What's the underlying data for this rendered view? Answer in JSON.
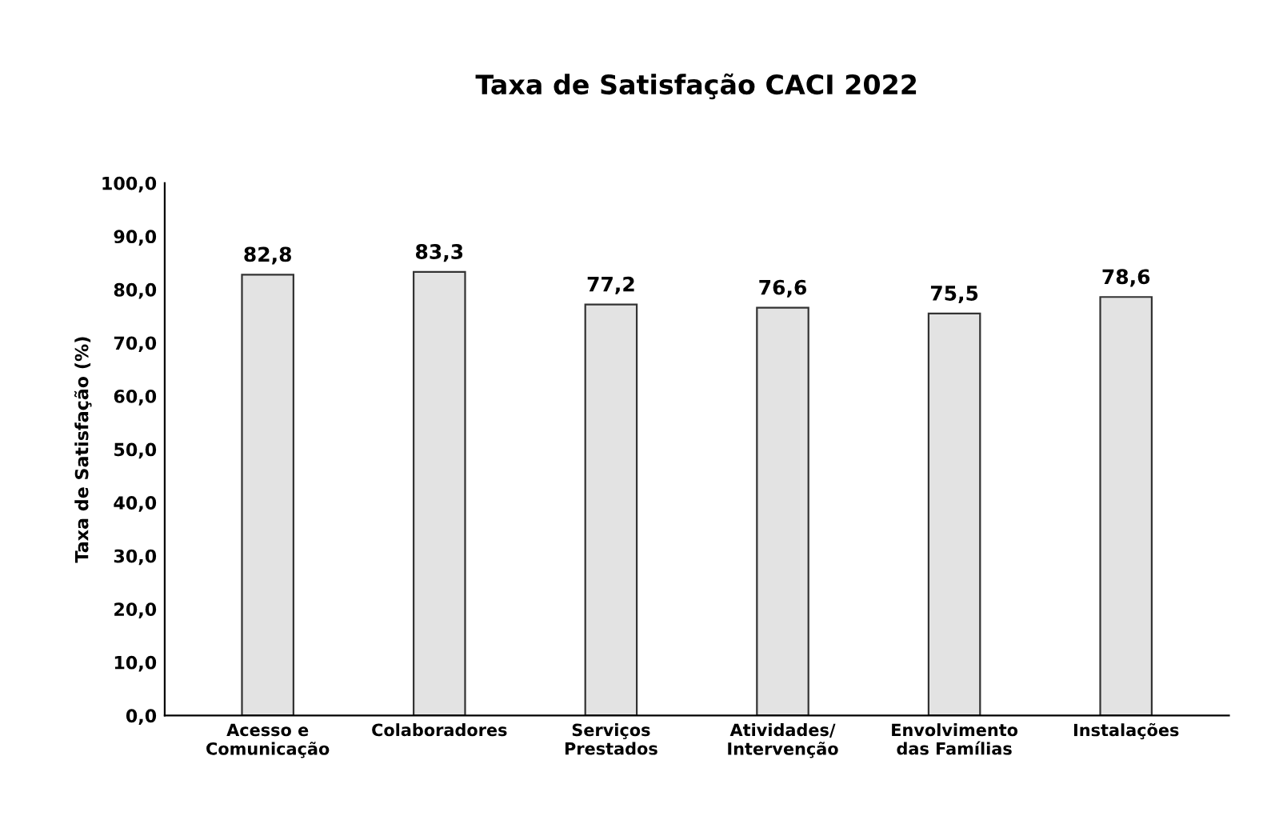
{
  "chart_data": {
    "type": "bar",
    "title": "Taxa de Satisfação CACI 2022",
    "ylabel": "Taxa de Satisfação (%)",
    "categories": [
      "Acesso e\nComunicação",
      "Colaboradores",
      "Serviços\nPrestados",
      "Atividades/\nIntervenção",
      "Envolvimento\ndas Famílias",
      "Instalações"
    ],
    "values": [
      82.8,
      83.3,
      77.2,
      76.6,
      75.5,
      78.6
    ],
    "value_labels": [
      "82,8",
      "83,3",
      "77,2",
      "76,6",
      "75,5",
      "78,6"
    ],
    "color": "#e3e3e3",
    "ylim": [
      0,
      100
    ],
    "yticks": [
      {
        "value": 0,
        "label": "0,0"
      },
      {
        "value": 10,
        "label": "10,0"
      },
      {
        "value": 20,
        "label": "20,0"
      },
      {
        "value": 30,
        "label": "30,0"
      },
      {
        "value": 40,
        "label": "40,0"
      },
      {
        "value": 50,
        "label": "50,0"
      },
      {
        "value": 60,
        "label": "60,0"
      },
      {
        "value": 70,
        "label": "70,0"
      },
      {
        "value": 80,
        "label": "80,0"
      },
      {
        "value": 90,
        "label": "90,0"
      },
      {
        "value": 100,
        "label": "100,0"
      }
    ],
    "grid": false
  }
}
